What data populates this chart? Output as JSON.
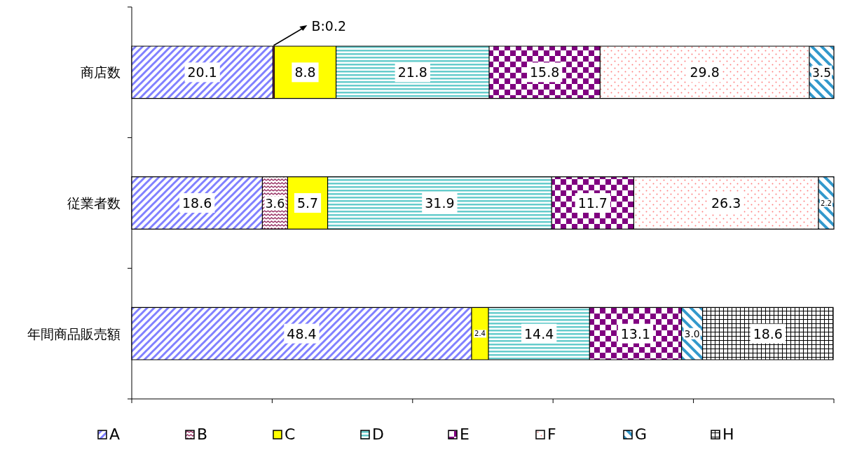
{
  "chart_data": {
    "type": "bar",
    "orientation": "horizontal",
    "stacked": true,
    "categories": [
      "商店数",
      "従業者数",
      "年間商品販売額"
    ],
    "xlim": [
      0,
      100
    ],
    "xticks": [
      {
        "value": 0,
        "label": null
      },
      {
        "value": 20,
        "label": null
      },
      {
        "value": 40,
        "label": null
      },
      {
        "value": 60,
        "label": null
      },
      {
        "value": 80,
        "label": null
      },
      {
        "value": 100,
        "label": null
      }
    ],
    "tick_labels": "y",
    "legend": "bottom",
    "grid": false,
    "series": [
      {
        "name": "A",
        "color": "#8080ff",
        "values": [
          20.1,
          18.6,
          48.4
        ],
        "value_labels": [
          "20.1",
          "18.6",
          "48.4"
        ]
      },
      {
        "name": "B",
        "color": "#993366",
        "values": [
          0.2,
          3.6,
          null
        ],
        "value_labels": [
          "B:0.2",
          "3.6",
          null
        ]
      },
      {
        "name": "C",
        "color": "#ffff00",
        "values": [
          8.8,
          5.7,
          2.4
        ],
        "value_labels": [
          "8.8",
          "5.7",
          "2.4"
        ]
      },
      {
        "name": "D",
        "color": "#66cccc",
        "values": [
          21.8,
          31.9,
          14.4
        ],
        "value_labels": [
          "21.8",
          "31.9",
          "14.4"
        ]
      },
      {
        "name": "E",
        "color": "#800080",
        "values": [
          15.8,
          11.7,
          13.1
        ],
        "value_labels": [
          "15.8",
          "11.7",
          "13.1"
        ]
      },
      {
        "name": "F",
        "color": "#ff8080",
        "values": [
          29.8,
          26.3,
          null
        ],
        "value_labels": [
          "29.8",
          "26.3",
          null
        ]
      },
      {
        "name": "G",
        "color": "#3399cc",
        "values": [
          3.5,
          2.2,
          3.0
        ],
        "value_labels": [
          "3.5",
          "2.2",
          "3.0"
        ]
      },
      {
        "name": "H",
        "color": "#000000",
        "values": [
          null,
          null,
          18.6
        ],
        "value_labels": [
          null,
          null,
          "18.6"
        ]
      }
    ]
  }
}
